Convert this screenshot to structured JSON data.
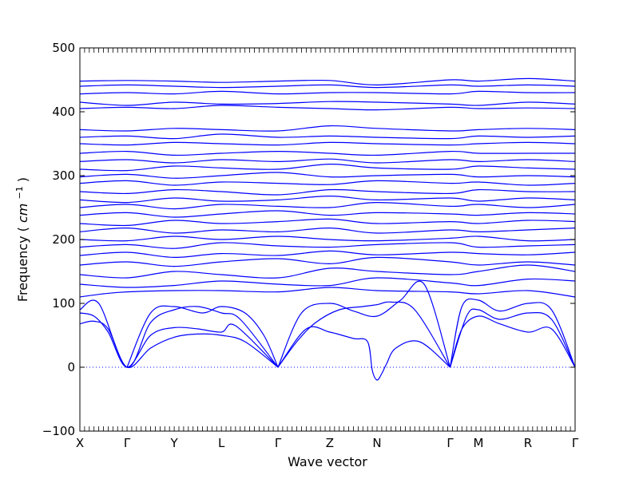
{
  "chart_data": {
    "type": "line",
    "title": "",
    "xlabel": "Wave vector",
    "ylabel": "Frequency",
    "ylabel_unit": "cm",
    "ylabel_unit_exponent": "−1",
    "ylim": [
      -100,
      500
    ],
    "yticks": [
      -100,
      0,
      100,
      200,
      300,
      400,
      500
    ],
    "ytick_labels": [
      "−100",
      "0",
      "100",
      "200",
      "300",
      "400",
      "500"
    ],
    "path_x_range": [
      0,
      10.5
    ],
    "high_symmetry_points": [
      {
        "label": "X",
        "x": 0.0
      },
      {
        "label": "Γ",
        "x": 1.0
      },
      {
        "label": "Y",
        "x": 2.0
      },
      {
        "label": "L",
        "x": 3.0
      },
      {
        "label": "Γ",
        "x": 4.2
      },
      {
        "label": "Z",
        "x": 5.3
      },
      {
        "label": "N",
        "x": 6.3
      },
      {
        "label": "Γ",
        "x": 7.85
      },
      {
        "label": "M",
        "x": 8.45
      },
      {
        "label": "R",
        "x": 9.5
      },
      {
        "label": "Γ",
        "x": 10.5
      }
    ],
    "zero_line": {
      "y": 0,
      "style": "dotted"
    },
    "grid": false,
    "legend": "none",
    "line_color": "#0000ff",
    "series": [
      {
        "x": [
          0,
          0.3,
          0.6,
          1.0,
          1.5,
          2.0,
          2.5,
          3.0,
          3.5,
          4.2
        ],
        "y": [
          68,
          72,
          60,
          0,
          30,
          47,
          52,
          50,
          40,
          0
        ]
      },
      {
        "x": [
          0,
          0.3,
          0.6,
          1.0,
          1.5,
          2.0,
          2.5,
          3.0,
          3.3,
          4.2
        ],
        "y": [
          85,
          80,
          55,
          0,
          50,
          62,
          60,
          55,
          65,
          0
        ]
      },
      {
        "x": [
          0,
          0.4,
          1.0,
          1.5,
          2.0,
          2.5,
          3.0,
          3.4,
          4.2
        ],
        "y": [
          90,
          100,
          0,
          70,
          90,
          95,
          85,
          75,
          0
        ]
      },
      {
        "x": [
          1.0,
          1.5,
          2.0,
          2.6,
          3.0,
          3.5,
          3.9,
          4.2
        ],
        "y": [
          0,
          85,
          95,
          85,
          95,
          85,
          50,
          0
        ]
      },
      {
        "x": [
          4.2,
          4.6,
          5.0,
          5.5,
          6.0,
          6.3,
          6.6,
          7.1,
          7.85
        ],
        "y": [
          0,
          40,
          70,
          90,
          95,
          98,
          102,
          90,
          0
        ]
      },
      {
        "x": [
          4.2,
          4.8,
          5.3,
          5.8,
          6.1,
          6.2,
          6.3,
          6.4,
          6.5,
          6.7,
          7.2,
          7.85
        ],
        "y": [
          0,
          60,
          55,
          45,
          40,
          -5,
          -20,
          -10,
          5,
          30,
          40,
          0
        ]
      },
      {
        "x": [
          4.2,
          4.7,
          5.3,
          5.8,
          6.3,
          6.8,
          7.3,
          7.85
        ],
        "y": [
          0,
          85,
          100,
          88,
          80,
          105,
          130,
          0
        ]
      },
      {
        "x": [
          7.85,
          8.1,
          8.45,
          8.9,
          9.5,
          10.0,
          10.5
        ],
        "y": [
          0,
          60,
          80,
          68,
          55,
          60,
          0
        ]
      },
      {
        "x": [
          7.85,
          8.2,
          8.45,
          8.9,
          9.5,
          10.0,
          10.5
        ],
        "y": [
          0,
          80,
          90,
          75,
          85,
          75,
          0
        ]
      },
      {
        "x": [
          7.85,
          8.1,
          8.45,
          8.9,
          9.5,
          10.0,
          10.5
        ],
        "y": [
          0,
          95,
          105,
          88,
          100,
          90,
          0
        ]
      },
      {
        "x": [
          0,
          0.5,
          1.0,
          2.0,
          3.0,
          4.2,
          5.3,
          6.3,
          7.85,
          8.45,
          9.5,
          10.5
        ],
        "y": [
          110,
          115,
          118,
          120,
          120,
          118,
          125,
          120,
          118,
          115,
          120,
          110
        ]
      },
      {
        "x": [
          0,
          1.0,
          2.0,
          3.0,
          4.2,
          5.3,
          6.3,
          7.85,
          8.45,
          9.5,
          10.5
        ],
        "y": [
          130,
          125,
          128,
          135,
          130,
          128,
          140,
          132,
          128,
          138,
          135
        ]
      },
      {
        "x": [
          0,
          1.0,
          2.0,
          3.0,
          4.2,
          5.3,
          6.3,
          7.85,
          8.45,
          9.5,
          10.5
        ],
        "y": [
          145,
          140,
          150,
          145,
          140,
          155,
          150,
          145,
          150,
          160,
          150
        ]
      },
      {
        "x": [
          0,
          1.0,
          2.0,
          3.0,
          4.2,
          5.3,
          6.3,
          7.85,
          8.45,
          9.5,
          10.5
        ],
        "y": [
          160,
          165,
          158,
          165,
          170,
          162,
          172,
          165,
          160,
          165,
          160
        ]
      },
      {
        "x": [
          0,
          1.0,
          2.0,
          3.0,
          4.2,
          5.3,
          6.3,
          7.85,
          8.45,
          9.5,
          10.5
        ],
        "y": [
          175,
          180,
          172,
          178,
          175,
          182,
          176,
          180,
          178,
          176,
          180
        ]
      },
      {
        "x": [
          0,
          1.0,
          2.0,
          3.0,
          4.2,
          5.3,
          6.3,
          7.85,
          8.45,
          9.5,
          10.5
        ],
        "y": [
          188,
          192,
          186,
          195,
          190,
          188,
          192,
          195,
          188,
          190,
          192
        ]
      },
      {
        "x": [
          0,
          1.0,
          2.0,
          3.0,
          4.2,
          5.3,
          6.3,
          7.85,
          8.45,
          9.5,
          10.5
        ],
        "y": [
          200,
          198,
          205,
          200,
          205,
          200,
          198,
          202,
          205,
          198,
          200
        ]
      },
      {
        "x": [
          0,
          1.0,
          2.0,
          3.0,
          4.2,
          5.3,
          6.3,
          7.85,
          8.45,
          9.5,
          10.5
        ],
        "y": [
          212,
          218,
          210,
          215,
          212,
          218,
          210,
          215,
          212,
          215,
          218
        ]
      },
      {
        "x": [
          0,
          1.0,
          2.0,
          3.0,
          4.2,
          5.3,
          6.3,
          7.85,
          8.45,
          9.5,
          10.5
        ],
        "y": [
          225,
          222,
          230,
          225,
          228,
          232,
          225,
          228,
          225,
          230,
          228
        ]
      },
      {
        "x": [
          0,
          1.0,
          2.0,
          3.0,
          4.2,
          5.3,
          6.3,
          7.85,
          8.45,
          9.5,
          10.5
        ],
        "y": [
          238,
          242,
          235,
          240,
          245,
          238,
          242,
          240,
          238,
          242,
          240
        ]
      },
      {
        "x": [
          0,
          1.0,
          2.0,
          3.0,
          4.2,
          5.3,
          6.3,
          7.85,
          8.45,
          9.5,
          10.5
        ],
        "y": [
          250,
          255,
          248,
          255,
          252,
          250,
          258,
          252,
          255,
          250,
          255
        ]
      },
      {
        "x": [
          0,
          1.0,
          2.0,
          3.0,
          4.2,
          5.3,
          6.3,
          7.85,
          8.45,
          9.5,
          10.5
        ],
        "y": [
          262,
          258,
          265,
          260,
          262,
          268,
          262,
          265,
          260,
          265,
          262
        ]
      },
      {
        "x": [
          0,
          1.0,
          2.0,
          3.0,
          4.2,
          5.3,
          6.3,
          7.85,
          8.45,
          9.5,
          10.5
        ],
        "y": [
          275,
          272,
          278,
          275,
          270,
          278,
          275,
          272,
          278,
          275,
          275
        ]
      },
      {
        "x": [
          0,
          1.0,
          2.0,
          3.0,
          4.2,
          5.3,
          6.3,
          7.85,
          8.45,
          9.5,
          10.5
        ],
        "y": [
          288,
          292,
          285,
          290,
          288,
          286,
          292,
          288,
          290,
          285,
          288
        ]
      },
      {
        "x": [
          0,
          1.0,
          2.0,
          3.0,
          4.2,
          5.3,
          6.3,
          7.85,
          8.45,
          9.5,
          10.5
        ],
        "y": [
          298,
          302,
          296,
          300,
          305,
          298,
          300,
          302,
          298,
          300,
          298
        ]
      },
      {
        "x": [
          0,
          1.0,
          2.0,
          3.0,
          4.2,
          5.3,
          6.3,
          7.85,
          8.45,
          9.5,
          10.5
        ],
        "y": [
          310,
          308,
          315,
          312,
          310,
          318,
          312,
          310,
          315,
          312,
          310
        ]
      },
      {
        "x": [
          0,
          1.0,
          2.0,
          3.0,
          4.2,
          5.3,
          6.3,
          7.85,
          8.45,
          9.5,
          10.5
        ],
        "y": [
          322,
          325,
          320,
          325,
          322,
          326,
          320,
          325,
          322,
          325,
          322
        ]
      },
      {
        "x": [
          0,
          1.0,
          2.0,
          3.0,
          4.2,
          5.3,
          6.3,
          7.85,
          8.45,
          9.5,
          10.5
        ],
        "y": [
          335,
          338,
          332,
          335,
          338,
          335,
          332,
          338,
          335,
          335,
          335
        ]
      },
      {
        "x": [
          0,
          1.0,
          2.0,
          3.0,
          4.2,
          5.3,
          6.3,
          7.85,
          8.45,
          9.5,
          10.5
        ],
        "y": [
          350,
          348,
          352,
          350,
          348,
          352,
          350,
          348,
          350,
          352,
          350
        ]
      },
      {
        "x": [
          0,
          1.0,
          2.0,
          3.0,
          4.2,
          5.3,
          6.3,
          7.85,
          8.45,
          9.5,
          10.5
        ],
        "y": [
          360,
          362,
          358,
          365,
          360,
          362,
          360,
          358,
          362,
          360,
          362
        ]
      },
      {
        "x": [
          0,
          1.0,
          2.0,
          3.0,
          4.2,
          5.3,
          6.3,
          7.85,
          8.45,
          9.5,
          10.5
        ],
        "y": [
          372,
          370,
          374,
          372,
          370,
          378,
          374,
          370,
          372,
          374,
          372
        ]
      },
      {
        "x": [
          0,
          1.0,
          2.0,
          3.0,
          4.2,
          5.3,
          6.3,
          7.85,
          8.45,
          9.5,
          10.5
        ],
        "y": [
          405,
          407,
          405,
          410,
          407,
          405,
          403,
          407,
          405,
          406,
          405
        ]
      },
      {
        "x": [
          0,
          1.0,
          2.0,
          3.0,
          4.2,
          5.3,
          6.3,
          7.85,
          8.45,
          9.5,
          10.5
        ],
        "y": [
          415,
          410,
          415,
          412,
          413,
          416,
          415,
          412,
          410,
          415,
          412
        ]
      },
      {
        "x": [
          0,
          1.0,
          2.0,
          3.0,
          4.2,
          5.3,
          6.3,
          7.85,
          8.45,
          9.5,
          10.5
        ],
        "y": [
          428,
          430,
          428,
          432,
          428,
          430,
          430,
          428,
          432,
          430,
          430
        ]
      },
      {
        "x": [
          0,
          1.0,
          2.0,
          3.0,
          4.2,
          5.3,
          6.3,
          7.85,
          8.45,
          9.5,
          10.5
        ],
        "y": [
          440,
          442,
          440,
          438,
          440,
          442,
          438,
          442,
          440,
          442,
          440
        ]
      },
      {
        "x": [
          0,
          1.0,
          2.0,
          3.0,
          4.2,
          5.3,
          6.3,
          7.85,
          8.45,
          9.5,
          10.5
        ],
        "y": [
          448,
          449,
          448,
          446,
          448,
          449,
          442,
          450,
          448,
          452,
          448
        ]
      }
    ]
  }
}
